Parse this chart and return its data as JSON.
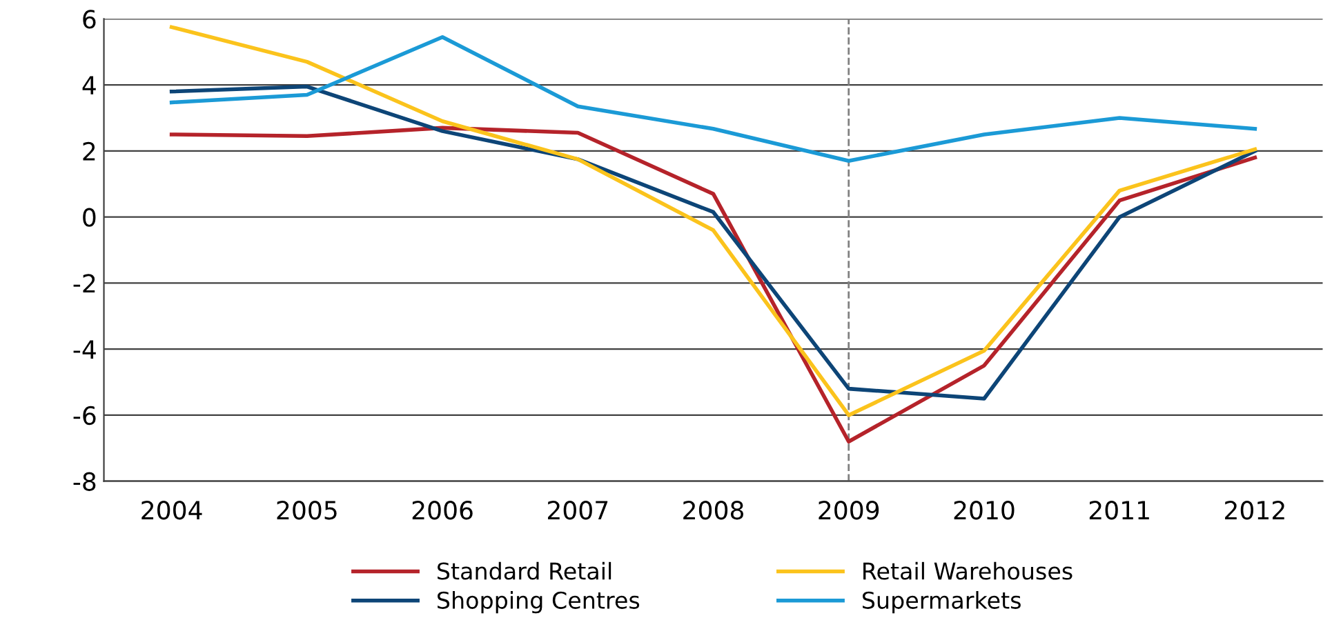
{
  "chart_data": {
    "type": "line",
    "categories": [
      "2004",
      "2005",
      "2006",
      "2007",
      "2008",
      "2009",
      "2010",
      "2011",
      "2012"
    ],
    "series": [
      {
        "name": "Standard Retail",
        "color": "#b5232a",
        "values": [
          2.5,
          2.45,
          2.7,
          2.55,
          0.7,
          -6.8,
          -4.5,
          0.5,
          1.8
        ]
      },
      {
        "name": "Shopping Centres",
        "color": "#0d4577",
        "values": [
          3.8,
          3.95,
          2.6,
          1.75,
          0.15,
          -5.2,
          -5.5,
          0,
          2.0
        ]
      },
      {
        "name": "Retail Warehouses",
        "color": "#fbc31c",
        "values": [
          5.75,
          4.7,
          2.9,
          1.75,
          -0.4,
          -6.0,
          -4.05,
          0.8,
          2.05
        ]
      },
      {
        "name": "Supermarkets",
        "color": "#1b9ad6",
        "values": [
          3.47,
          3.7,
          5.45,
          3.35,
          2.67,
          1.7,
          2.5,
          3.0,
          2.67
        ]
      }
    ],
    "ylim": [
      -8,
      6
    ],
    "yticks": [
      -8,
      -6,
      -4,
      -2,
      0,
      2,
      4,
      6
    ],
    "grid": "y",
    "legend": "bottom",
    "marker": "none",
    "line_style": "solid",
    "ref_lines": [
      {
        "axis": "x",
        "value": "2009",
        "color": "#808080",
        "line_style": "dashed"
      }
    ]
  }
}
